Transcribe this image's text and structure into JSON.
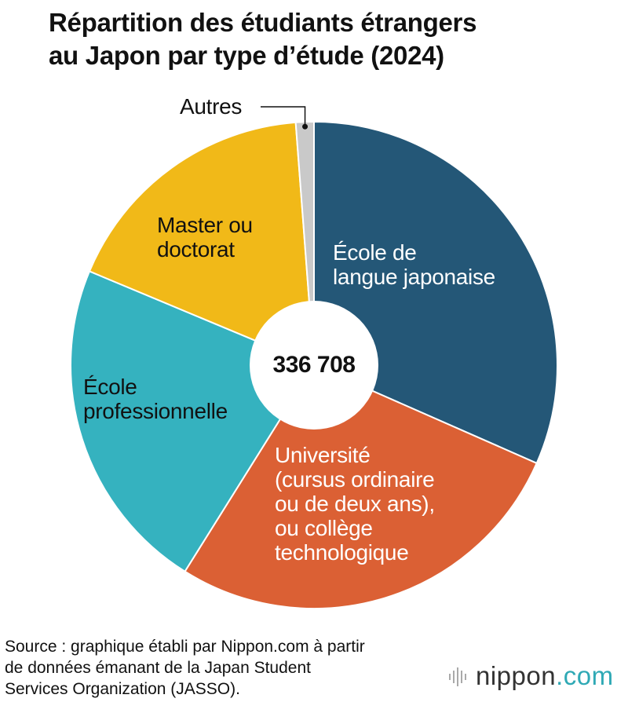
{
  "chart_data": {
    "type": "pie",
    "title": "Répartition des étudiants étrangers\nau Japon par type d’étude (2024)",
    "total_label": "336 708",
    "unit": "percent (estimated from slice angles)",
    "slices": [
      {
        "name": "École de\nlangue japonaise",
        "value": 31.6,
        "color": "#245777"
      },
      {
        "name": "Université\n(cursus ordinaire\nou de deux ans),\nou collège\ntechnologique",
        "value": 27.3,
        "color": "#db6034"
      },
      {
        "name": "École\nprofessionnelle",
        "value": 22.4,
        "color": "#35b2bf"
      },
      {
        "name": "Master ou\ndoctorat",
        "value": 17.5,
        "color": "#f1b918"
      },
      {
        "name": "Autres",
        "value": 1.2,
        "color": "#c9c9c9"
      }
    ]
  },
  "source": "Source : graphique établi par Nippon.com à partir\nde données émanant de la Japan Student\nServices Organization (JASSO).",
  "logo": {
    "name": "nippon",
    "suffix": ".com",
    "icon": "waveform-icon"
  }
}
